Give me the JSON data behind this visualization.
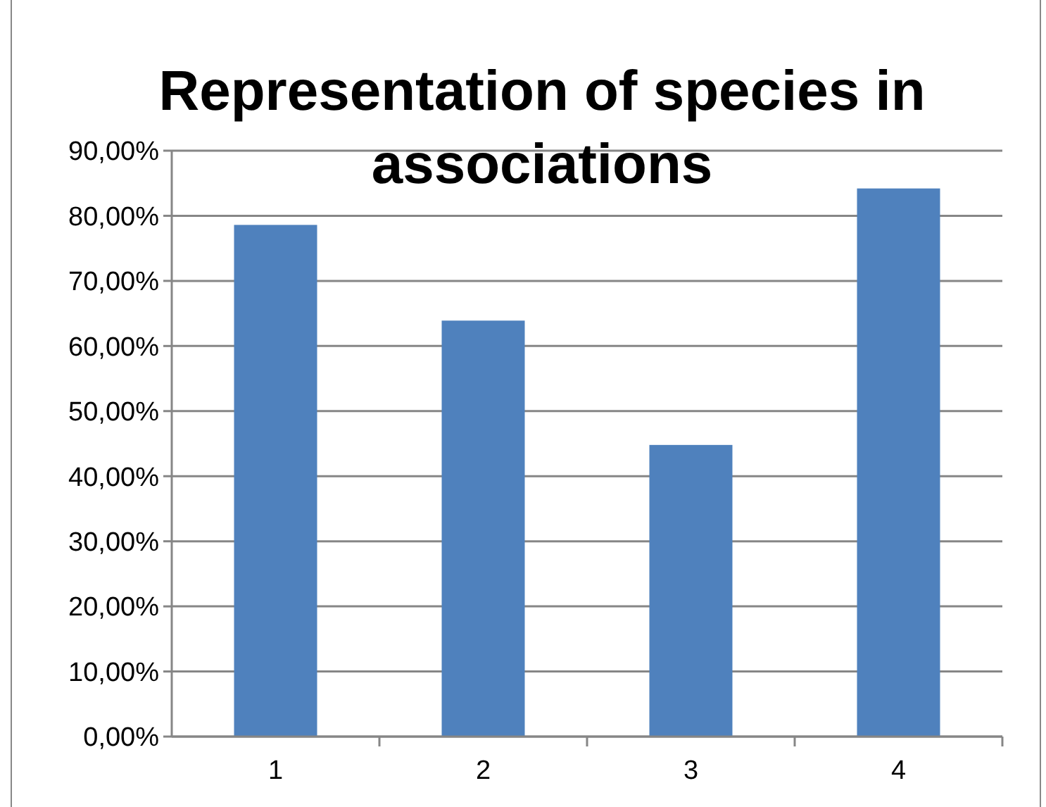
{
  "chart_data": {
    "type": "bar",
    "title": "Representation of species in associations",
    "categories": [
      "1",
      "2",
      "3",
      "4"
    ],
    "values": [
      78.6,
      63.9,
      44.8,
      84.2
    ],
    "color": "#4f81bd",
    "ylim": [
      0,
      90
    ],
    "yticks": [
      {
        "value": 0,
        "label": "0,00%"
      },
      {
        "value": 10,
        "label": "10,00%"
      },
      {
        "value": 20,
        "label": "20,00%"
      },
      {
        "value": 30,
        "label": "30,00%"
      },
      {
        "value": 40,
        "label": "40,00%"
      },
      {
        "value": 50,
        "label": "50,00%"
      },
      {
        "value": 60,
        "label": "60,00%"
      },
      {
        "value": 70,
        "label": "70,00%"
      },
      {
        "value": 80,
        "label": "80,00%"
      },
      {
        "value": 90,
        "label": "90,00%"
      }
    ],
    "grid": "y"
  }
}
